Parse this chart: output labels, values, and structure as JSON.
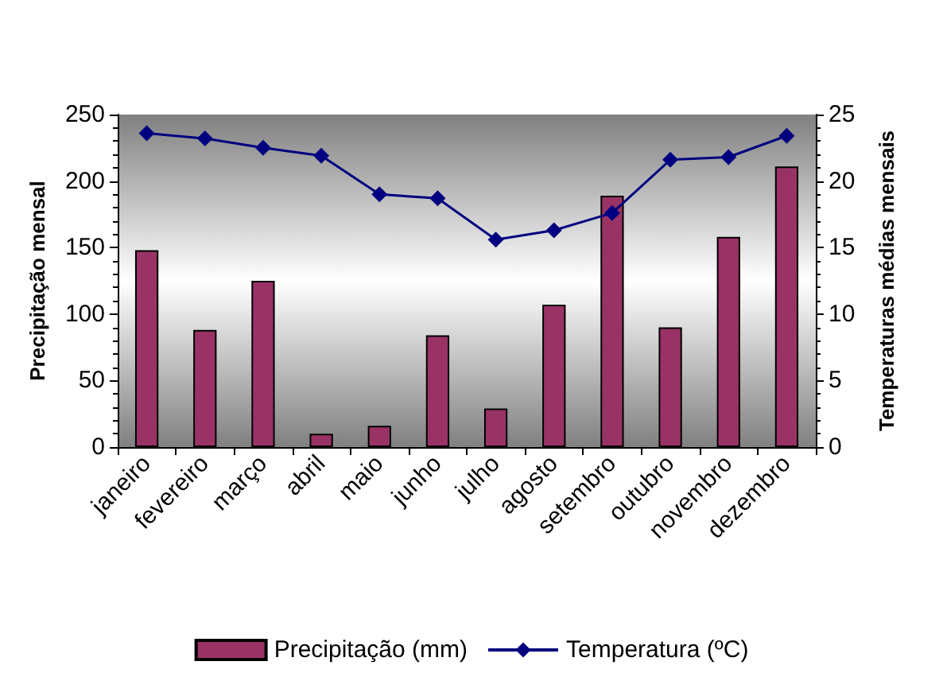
{
  "chart_data": {
    "type": "bar",
    "ylabel": "Precipitação mensal",
    "y2label": "Temperaturas médias mensais",
    "categories": [
      "janeiro",
      "fevereiro",
      "março",
      "abril",
      "maio",
      "junho",
      "julho",
      "agosto",
      "setembro",
      "outubro",
      "novembro",
      "dezembro"
    ],
    "series": [
      {
        "name": "Precipitação (mm)",
        "color": "#993366",
        "values": [
          148,
          88,
          125,
          10,
          16,
          84,
          29,
          107,
          189,
          90,
          158,
          211
        ]
      },
      {
        "name": "Temperatura (ºC)",
        "type": "line",
        "axis": "y2",
        "color": "#000080",
        "marker": "diamond",
        "values": [
          23.6,
          23.2,
          22.5,
          21.9,
          19.0,
          18.7,
          15.6,
          16.3,
          17.6,
          21.6,
          21.8,
          23.4
        ]
      }
    ],
    "ylim": [
      0,
      250
    ],
    "yticks": [
      0,
      50,
      100,
      150,
      200,
      250
    ],
    "y2lim": [
      0,
      25
    ],
    "y2ticks": [
      0,
      5,
      10,
      15,
      20,
      25
    ],
    "legend": "bottom",
    "grid": false
  }
}
